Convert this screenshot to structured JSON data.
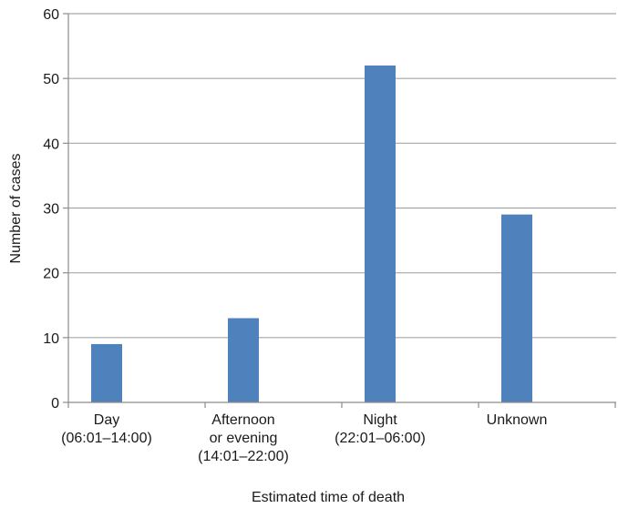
{
  "chart_data": {
    "type": "bar",
    "title": "",
    "xlabel": "Estimated time of death",
    "ylabel": "Number of cases",
    "categories": [
      [
        "Day",
        "(06:01–14:00)"
      ],
      [
        "Afternoon",
        "or evening",
        "(14:01–22:00)"
      ],
      [
        "Night",
        "(22:01–06:00)"
      ],
      [
        "Unknown"
      ]
    ],
    "values": [
      9,
      13,
      52,
      29
    ],
    "ylim": [
      0,
      60
    ],
    "yticks": [
      0,
      10,
      20,
      30,
      40,
      50,
      60
    ],
    "grid": true,
    "legend": "none",
    "bar_color": "#4f81bd",
    "grid_color": "#a6a6a6",
    "axis_color": "#8c8c8c"
  }
}
